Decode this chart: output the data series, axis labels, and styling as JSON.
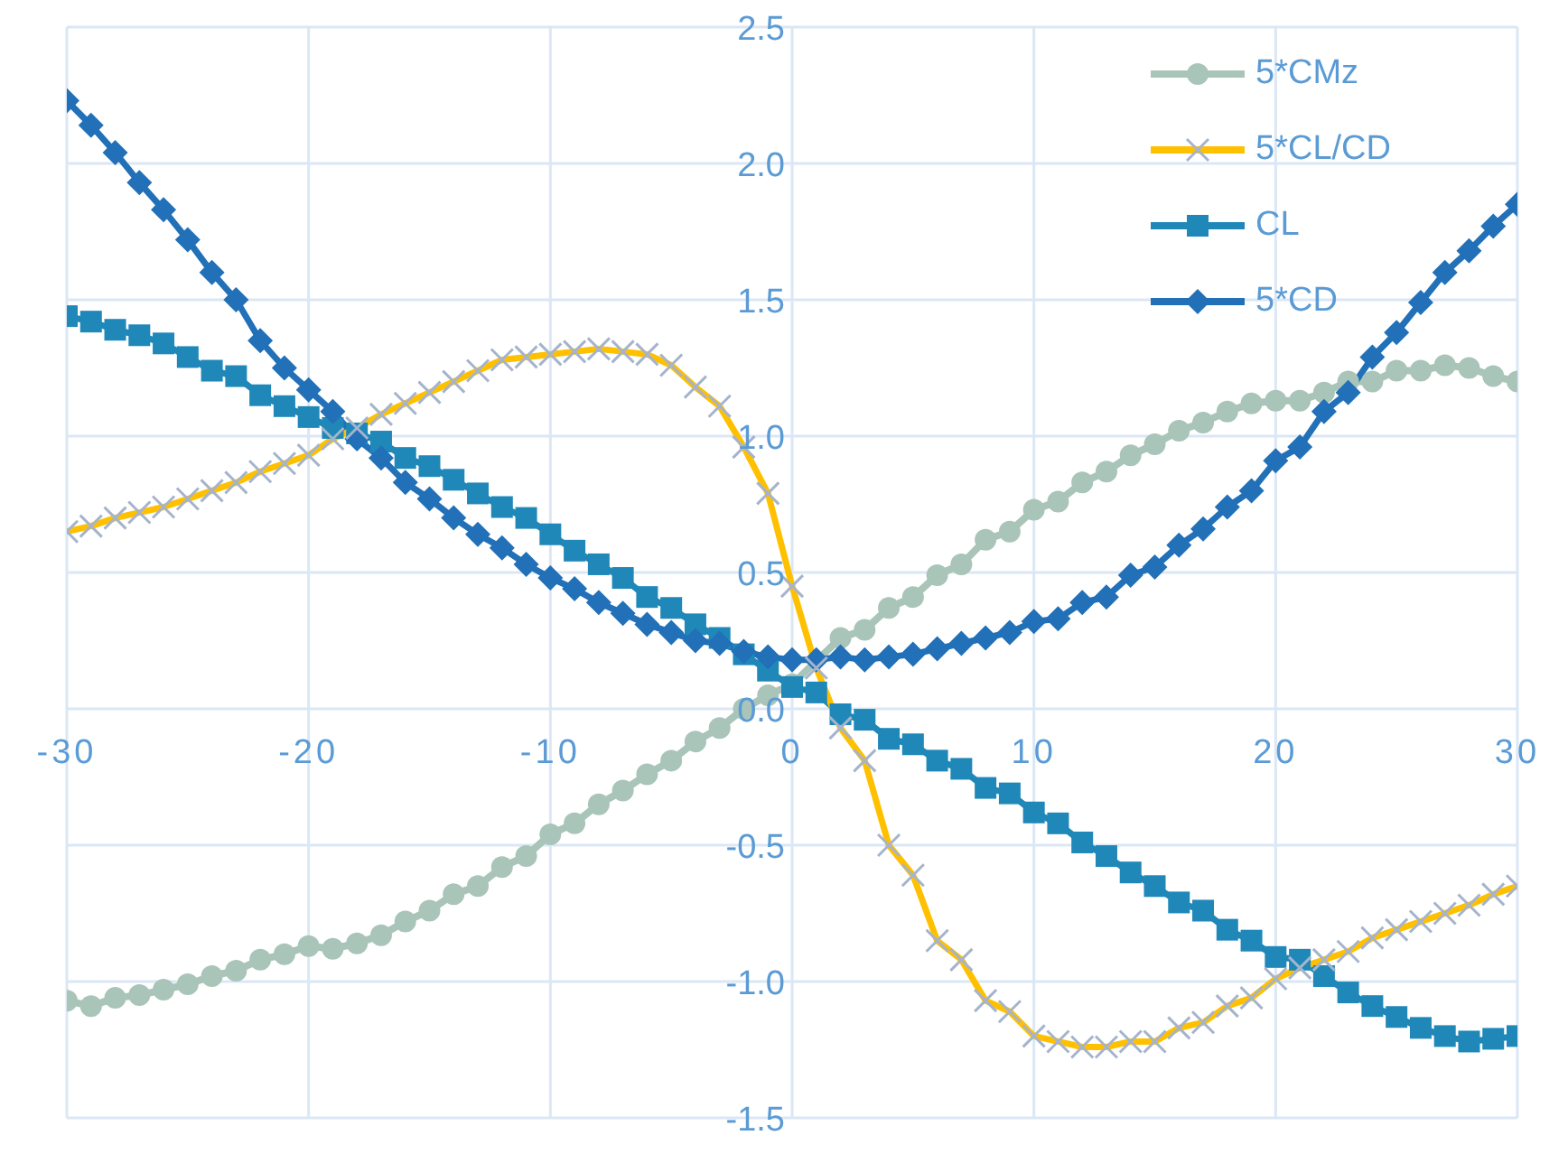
{
  "chart_data": {
    "type": "line",
    "x": [
      -30,
      -29,
      -28,
      -27,
      -26,
      -25,
      -24,
      -23,
      -22,
      -21,
      -20,
      -19,
      -18,
      -17,
      -16,
      -15,
      -14,
      -13,
      -12,
      -11,
      -10,
      -9,
      -8,
      -7,
      -6,
      -5,
      -4,
      -3,
      -2,
      -1,
      0,
      1,
      2,
      3,
      4,
      5,
      6,
      7,
      8,
      9,
      10,
      11,
      12,
      13,
      14,
      15,
      16,
      17,
      18,
      19,
      20,
      21,
      22,
      23,
      24,
      25,
      26,
      27,
      28,
      29,
      30
    ],
    "series": [
      {
        "name": "5*CMz",
        "color": "#a9c4b8",
        "marker": "circle",
        "values": [
          -1.07,
          -1.09,
          -1.06,
          -1.05,
          -1.03,
          -1.01,
          -0.98,
          -0.96,
          -0.92,
          -0.9,
          -0.87,
          -0.88,
          -0.86,
          -0.83,
          -0.78,
          -0.74,
          -0.68,
          -0.65,
          -0.58,
          -0.54,
          -0.46,
          -0.42,
          -0.35,
          -0.3,
          -0.24,
          -0.19,
          -0.12,
          -0.07,
          0.0,
          0.05,
          0.09,
          null,
          0.26,
          0.29,
          0.37,
          0.41,
          0.49,
          0.53,
          0.62,
          0.65,
          0.73,
          0.76,
          0.83,
          0.87,
          0.93,
          0.97,
          1.02,
          1.05,
          1.09,
          1.12,
          1.13,
          1.13,
          1.16,
          1.2,
          1.2,
          1.24,
          1.24,
          1.26,
          1.25,
          1.22,
          1.2
        ]
      },
      {
        "name": "5*CL/CD",
        "color": "#ffc000",
        "marker": "cross",
        "values": [
          0.65,
          0.67,
          0.7,
          0.72,
          0.74,
          0.77,
          0.8,
          0.83,
          0.87,
          0.9,
          0.93,
          0.99,
          1.03,
          1.08,
          1.12,
          1.16,
          1.2,
          1.24,
          1.28,
          1.29,
          1.3,
          1.31,
          1.32,
          1.31,
          1.3,
          1.26,
          1.18,
          1.11,
          0.96,
          0.79,
          0.45,
          0.15,
          -0.07,
          -0.19,
          -0.5,
          -0.61,
          -0.85,
          -0.92,
          -1.07,
          -1.11,
          -1.2,
          -1.22,
          -1.24,
          -1.24,
          -1.22,
          -1.22,
          -1.17,
          -1.15,
          -1.09,
          -1.06,
          -0.99,
          -0.95,
          -0.92,
          -0.89,
          -0.84,
          -0.81,
          -0.78,
          -0.75,
          -0.72,
          -0.68,
          -0.65
        ]
      },
      {
        "name": "CL",
        "color": "#1f88b9",
        "marker": "square",
        "values": [
          1.44,
          1.42,
          1.39,
          1.37,
          1.34,
          1.29,
          1.24,
          1.22,
          1.15,
          1.11,
          1.07,
          1.03,
          1.01,
          0.98,
          0.92,
          0.89,
          0.84,
          0.79,
          0.74,
          0.7,
          0.64,
          0.58,
          0.53,
          0.48,
          0.41,
          0.37,
          0.31,
          0.26,
          0.2,
          0.14,
          0.08,
          0.06,
          -0.02,
          -0.04,
          -0.11,
          -0.13,
          -0.19,
          -0.22,
          -0.29,
          -0.31,
          -0.38,
          -0.42,
          -0.49,
          -0.54,
          -0.6,
          -0.65,
          -0.71,
          -0.74,
          -0.81,
          -0.85,
          -0.91,
          -0.92,
          -0.98,
          -1.04,
          -1.09,
          -1.13,
          -1.17,
          -1.2,
          -1.22,
          -1.21,
          -1.2
        ]
      },
      {
        "name": "5*CD",
        "color": "#2170b8",
        "marker": "diamond",
        "values": [
          2.23,
          2.14,
          2.04,
          1.93,
          1.83,
          1.72,
          1.6,
          1.5,
          1.35,
          1.25,
          1.17,
          1.09,
          0.99,
          0.92,
          0.83,
          0.77,
          0.7,
          0.64,
          0.59,
          0.53,
          0.48,
          0.44,
          0.39,
          0.35,
          0.31,
          0.28,
          0.25,
          0.24,
          0.21,
          0.19,
          0.18,
          0.18,
          0.19,
          0.18,
          0.19,
          0.2,
          0.22,
          0.24,
          0.26,
          0.28,
          0.32,
          0.33,
          0.39,
          0.41,
          0.49,
          0.52,
          0.6,
          0.66,
          0.74,
          0.8,
          0.91,
          0.96,
          1.09,
          1.16,
          1.29,
          1.38,
          1.49,
          1.6,
          1.68,
          1.77,
          1.85
        ]
      }
    ],
    "xlim": [
      -30,
      30
    ],
    "xticks": [
      -30,
      -20,
      -10,
      0,
      10,
      20,
      30
    ],
    "ylim": [
      -1.5,
      2.5
    ],
    "yticks": [
      {
        "value": -1.5,
        "label": "-1.5"
      },
      {
        "value": -1.0,
        "label": "-1.0"
      },
      {
        "value": -0.5,
        "label": "-0.5"
      },
      {
        "value": 0,
        "label": "0.0"
      },
      {
        "value": 0.5,
        "label": "0.5"
      },
      {
        "value": 1.0,
        "label": "1.0"
      },
      {
        "value": 1.5,
        "label": "1.5"
      },
      {
        "value": 2.0,
        "label": "2.0"
      },
      {
        "value": 2.5,
        "label": "2.5"
      }
    ],
    "grid": true,
    "legend": "top right",
    "line_style": "solid"
  }
}
